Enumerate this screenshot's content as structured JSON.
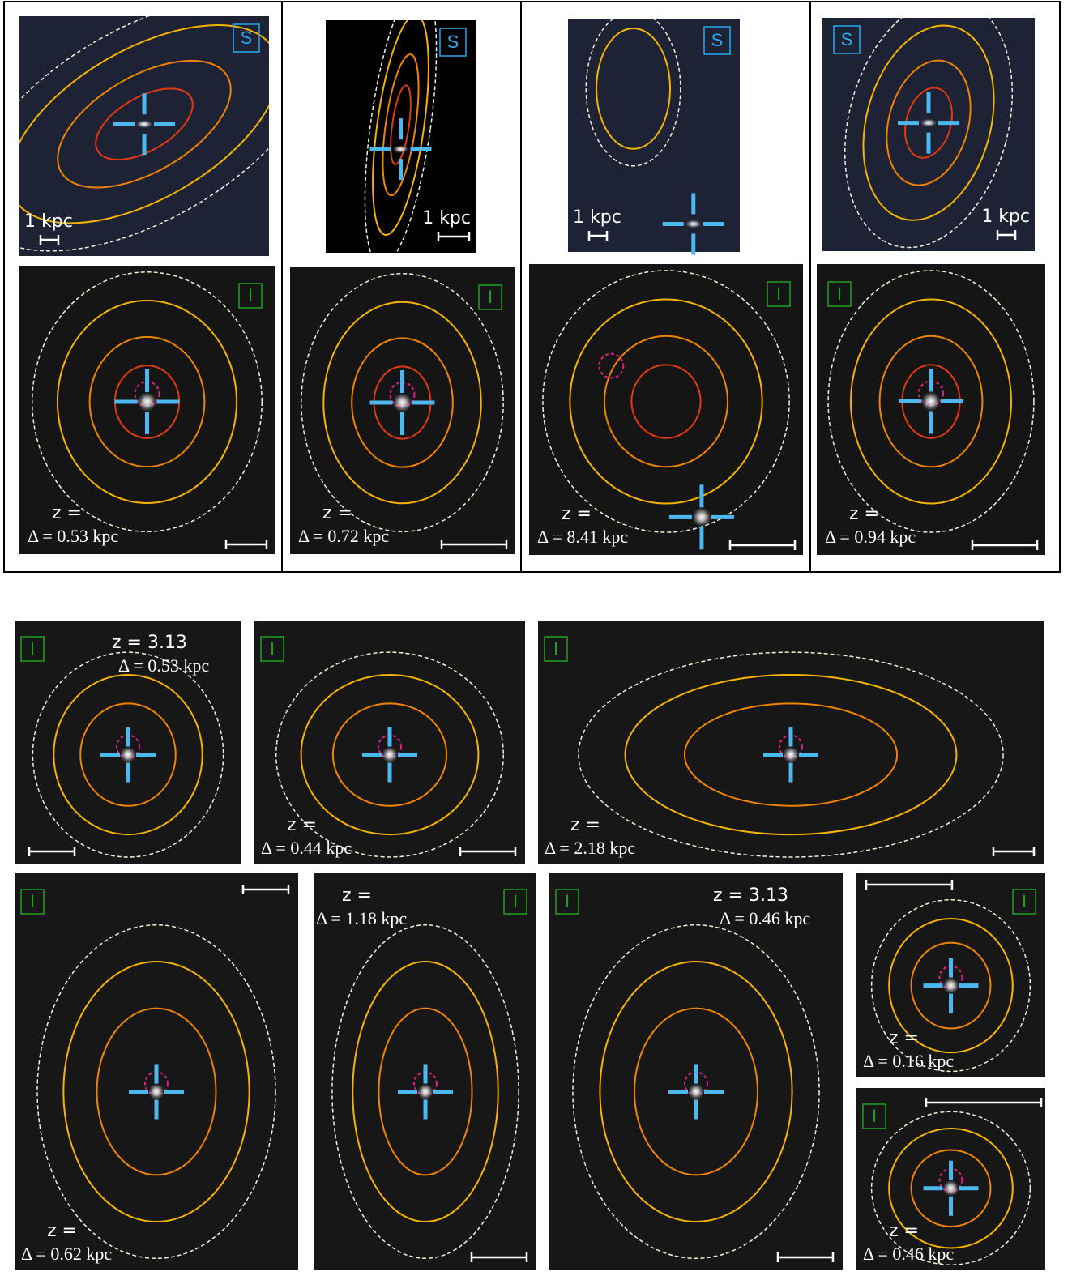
{
  "top_panels": [
    {
      "s_label": "S",
      "scale_label": "1 kpc",
      "i_label": "I",
      "z_label": "z =",
      "delta_label": "Δ = 0.53 kpc"
    },
    {
      "s_label": "S",
      "scale_label": "1 kpc",
      "i_label": "I",
      "z_label": "z =",
      "delta_label": "Δ = 0.72 kpc"
    },
    {
      "s_label": "S",
      "scale_label": "1 kpc",
      "i_label": "I",
      "z_label": "z =",
      "delta_label": "Δ = 8.41 kpc"
    },
    {
      "s_label": "S",
      "scale_label": "1 kpc",
      "i_label": "I",
      "z_label": "z =",
      "delta_label": "Δ = 0.94 kpc"
    }
  ],
  "lower_panels": [
    {
      "i_label": "I",
      "z_label": "z = 3.13",
      "delta_label": "Δ = 0.53 kpc"
    },
    {
      "i_label": "I",
      "z_label": "z =",
      "delta_label": "Δ = 0.44 kpc"
    },
    {
      "i_label": "I",
      "z_label": "z =",
      "delta_label": "Δ = 2.18 kpc"
    },
    {
      "i_label": "I",
      "z_label": "z =",
      "delta_label": "Δ = 0.62 kpc"
    },
    {
      "i_label": "I",
      "z_label": "z =",
      "delta_label": "Δ = 1.18 kpc"
    },
    {
      "i_label": "I",
      "z_label": "z = 3.13",
      "delta_label": "Δ = 0.46 kpc"
    },
    {
      "i_label": "I",
      "z_label": "z =",
      "delta_label": "Δ = 0.16 kpc"
    },
    {
      "i_label": "I",
      "z_label": "z =",
      "delta_label": "Δ = 0.46 kpc"
    }
  ]
}
